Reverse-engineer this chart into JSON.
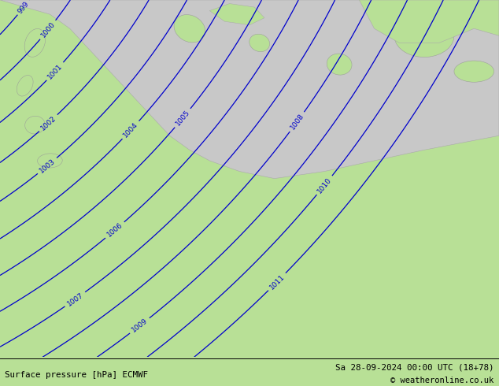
{
  "title_left": "Surface pressure [hPa] ECMWF",
  "title_right": "Sa 28-09-2024 00:00 UTC (18+78)",
  "copyright": "© weatheronline.co.uk",
  "land_color": "#b8e096",
  "highland_color": "#c8c8c8",
  "contour_color": "#0000cc",
  "label_color": "#0000cc",
  "contour_linewidth": 0.9,
  "label_fontsize": 6.5,
  "pressure_min": 990,
  "pressure_max": 1011,
  "figwidth": 6.34,
  "figheight": 4.9,
  "dpi": 100
}
